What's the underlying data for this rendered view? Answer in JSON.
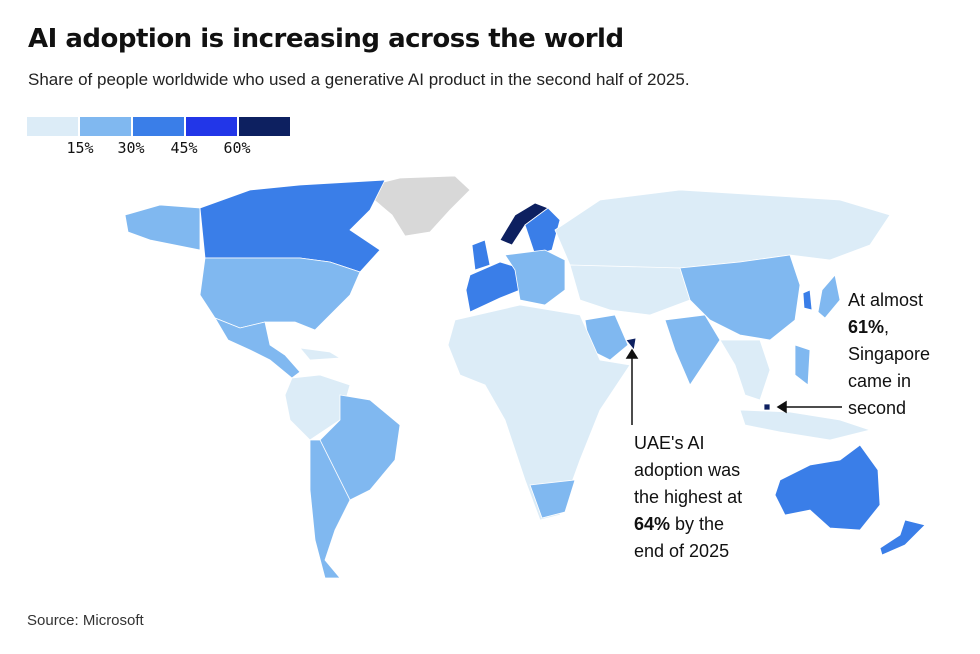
{
  "title": "AI adoption is increasing across the world",
  "subtitle": "Share of people worldwide who used a generative AI product in the second half of 2025.",
  "legend": {
    "colors": [
      "#dcecf7",
      "#80b8f0",
      "#3a7ee8",
      "#2236e8",
      "#0d2060"
    ],
    "ticks": [
      "15%",
      "30%",
      "45%",
      "60%"
    ]
  },
  "no_data_color": "#d8d8d8",
  "annotations": {
    "singapore": {
      "pre": "At almost",
      "bold": "61%",
      "post": ", Singapore came in second"
    },
    "uae": {
      "pre": "UAE's AI adoption was the highest at",
      "bold": "64%",
      "post": " by the end of 2025"
    }
  },
  "source": "Source: Microsoft"
}
